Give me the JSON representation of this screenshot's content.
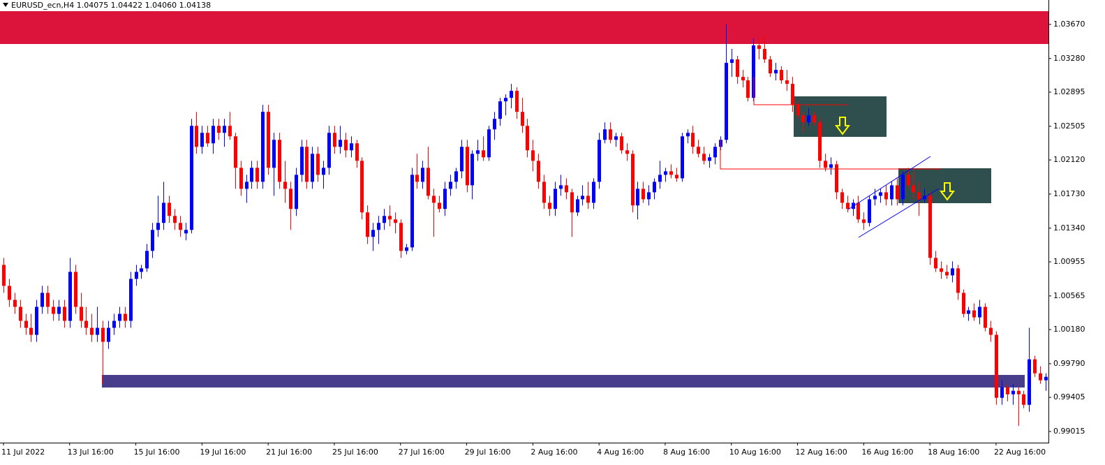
{
  "chart_data": {
    "type": "candlestick",
    "title": "EURUSD_ecn,H4  1.04075 1.04422 1.04060 1.04138",
    "bull_color": "#0000ff",
    "bear_color": "#ff0000",
    "xlim": [
      -0.63,
      189.5
    ],
    "ylim": [
      0.98887,
      1.03949
    ],
    "xticks": [
      {
        "value": 0,
        "label": "11 Jul 2022"
      },
      {
        "value": 12,
        "label": "13 Jul 16:00"
      },
      {
        "value": 24,
        "label": "15 Jul 16:00"
      },
      {
        "value": 36,
        "label": "19 Jul 16:00"
      },
      {
        "value": 48,
        "label": "21 Jul 16:00"
      },
      {
        "value": 60,
        "label": "25 Jul 16:00"
      },
      {
        "value": 72,
        "label": "27 Jul 16:00"
      },
      {
        "value": 84,
        "label": "29 Jul 16:00"
      },
      {
        "value": 96,
        "label": "2 Aug 16:00"
      },
      {
        "value": 108,
        "label": "4 Aug 16:00"
      },
      {
        "value": 120,
        "label": "8 Aug 16:00"
      },
      {
        "value": 132,
        "label": "10 Aug 16:00"
      },
      {
        "value": 144,
        "label": "12 Aug 16:00"
      },
      {
        "value": 156,
        "label": "16 Aug 16:00"
      },
      {
        "value": 168,
        "label": "18 Aug 16:00"
      },
      {
        "value": 180,
        "label": "22 Aug 16:00"
      }
    ],
    "yticks": [
      {
        "value": 1.0367,
        "label": "1.03670"
      },
      {
        "value": 1.0328,
        "label": "1.03280"
      },
      1.02895,
      1.02505,
      {
        "value": 1.0212,
        "label": "1.02120"
      },
      {
        "value": 1.0173,
        "label": "1.01730"
      },
      {
        "value": 1.0134,
        "label": "1.01340"
      },
      1.00955,
      1.00565,
      {
        "value": 1.0018,
        "label": "1.00180"
      },
      {
        "value": 0.9979,
        "label": "0.99790"
      },
      0.99405,
      0.99015
    ],
    "candles": [
      [
        1.0092,
        1.01,
        1.006,
        1.0068
      ],
      [
        1.0068,
        1.0076,
        1.0044,
        1.0052
      ],
      [
        1.0052,
        1.006,
        1.0036,
        1.0044
      ],
      [
        1.0044,
        1.0052,
        1.002,
        1.0028
      ],
      [
        1.0028,
        1.0036,
        1.0012,
        1.002
      ],
      [
        1.002,
        1.0036,
        1.0004,
        1.0012
      ],
      [
        1.0012,
        1.0052,
        1.0004,
        1.0044
      ],
      [
        1.0044,
        1.0068,
        1.0036,
        1.006
      ],
      [
        1.006,
        1.0068,
        1.0036,
        1.0044
      ],
      [
        1.0044,
        1.0052,
        1.0028,
        1.0036
      ],
      [
        1.0036,
        1.0052,
        1.0028,
        1.0044
      ],
      [
        1.0044,
        1.0052,
        1.002,
        1.0028
      ],
      [
        1.0028,
        1.01,
        1.002,
        1.0084
      ],
      [
        1.0084,
        1.0092,
        1.0036,
        1.0044
      ],
      [
        1.0044,
        1.006,
        1.002,
        1.0028
      ],
      [
        1.0028,
        1.0044,
        1.0012,
        1.002
      ],
      [
        1.002,
        1.0036,
        1.0004,
        1.0012
      ],
      [
        1.0012,
        1.0044,
        1.0004,
        1.002
      ],
      [
        1.002,
        1.0028,
        0.9956,
        1.0004
      ],
      [
        1.0004,
        1.0028,
        0.9996,
        1.002
      ],
      [
        1.002,
        1.0036,
        1.0012,
        1.0028
      ],
      [
        1.0028,
        1.0044,
        1.002,
        1.0036
      ],
      [
        1.0036,
        1.0044,
        1.002,
        1.0028
      ],
      [
        1.0028,
        1.0084,
        1.002,
        1.0076
      ],
      [
        1.0076,
        1.0092,
        1.0068,
        1.0084
      ],
      [
        1.0084,
        1.0092,
        1.0076,
        1.0088
      ],
      [
        1.0088,
        1.0116,
        1.0084,
        1.0108
      ],
      [
        1.0108,
        1.014,
        1.01,
        1.0132
      ],
      [
        1.0132,
        1.0171,
        1.0124,
        1.014
      ],
      [
        1.014,
        1.0187,
        1.0132,
        1.0163
      ],
      [
        1.0163,
        1.0171,
        1.014,
        1.0148
      ],
      [
        1.0148,
        1.0156,
        1.0132,
        1.014
      ],
      [
        1.014,
        1.0148,
        1.0124,
        1.0132
      ],
      [
        1.0128,
        1.014,
        1.012,
        1.0132
      ],
      [
        1.0132,
        1.0259,
        1.0128,
        1.0251
      ],
      [
        1.0251,
        1.0267,
        1.0219,
        1.0227
      ],
      [
        1.0227,
        1.0251,
        1.0219,
        1.0243
      ],
      [
        1.0243,
        1.0251,
        1.0227,
        1.0231
      ],
      [
        1.0231,
        1.0259,
        1.0219,
        1.0251
      ],
      [
        1.0251,
        1.0259,
        1.0235,
        1.0243
      ],
      [
        1.0243,
        1.0259,
        1.0227,
        1.0251
      ],
      [
        1.0251,
        1.0267,
        1.0235,
        1.0239
      ],
      [
        1.0239,
        1.0243,
        1.0179,
        1.0203
      ],
      [
        1.0203,
        1.0211,
        1.0171,
        1.0179
      ],
      [
        1.0179,
        1.0195,
        1.0163,
        1.0187
      ],
      [
        1.0187,
        1.0211,
        1.0179,
        1.0203
      ],
      [
        1.0203,
        1.0211,
        1.0179,
        1.0187
      ],
      [
        1.0187,
        1.0275,
        1.0179,
        1.0267
      ],
      [
        1.0267,
        1.0275,
        1.0195,
        1.0203
      ],
      [
        1.0203,
        1.0243,
        1.0171,
        1.0235
      ],
      [
        1.0235,
        1.0243,
        1.0179,
        1.0187
      ],
      [
        1.0187,
        1.0211,
        1.0163,
        1.0179
      ],
      [
        1.0179,
        1.0187,
        1.0132,
        1.0156
      ],
      [
        1.0156,
        1.0203,
        1.0148,
        1.0195
      ],
      [
        1.0195,
        1.0235,
        1.0187,
        1.0227
      ],
      [
        1.0227,
        1.0235,
        1.0179,
        1.0187
      ],
      [
        1.0187,
        1.0227,
        1.0179,
        1.0219
      ],
      [
        1.0219,
        1.0227,
        1.0187,
        1.0195
      ],
      [
        1.0195,
        1.0211,
        1.0179,
        1.0203
      ],
      [
        1.0203,
        1.0251,
        1.0195,
        1.0243
      ],
      [
        1.0243,
        1.0251,
        1.0219,
        1.0227
      ],
      [
        1.0227,
        1.0251,
        1.0219,
        1.0235
      ],
      [
        1.0235,
        1.0243,
        1.0215,
        1.0223
      ],
      [
        1.0223,
        1.0239,
        1.0215,
        1.0231
      ],
      [
        1.0231,
        1.0235,
        1.0203,
        1.0211
      ],
      [
        1.0211,
        1.0215,
        1.0144,
        1.0152
      ],
      [
        1.0152,
        1.016,
        1.0116,
        1.0124
      ],
      [
        1.0124,
        1.014,
        1.0108,
        1.0132
      ],
      [
        1.0132,
        1.0148,
        1.0116,
        1.014
      ],
      [
        1.014,
        1.0156,
        1.0132,
        1.0148
      ],
      [
        1.0148,
        1.016,
        1.0136,
        1.0144
      ],
      [
        1.0144,
        1.0152,
        1.0128,
        1.014
      ],
      [
        1.014,
        1.0144,
        1.01,
        1.0108
      ],
      [
        1.0108,
        1.0116,
        1.0104,
        1.0112
      ],
      [
        1.0112,
        1.0203,
        1.0108,
        1.0195
      ],
      [
        1.0195,
        1.0219,
        1.0179,
        1.0187
      ],
      [
        1.0187,
        1.0211,
        1.0179,
        1.0203
      ],
      [
        1.0203,
        1.0227,
        1.0167,
        1.0171
      ],
      [
        1.0171,
        1.0179,
        1.0124,
        1.0163
      ],
      [
        1.0163,
        1.0171,
        1.0152,
        1.0156
      ],
      [
        1.0156,
        1.0187,
        1.0148,
        1.0179
      ],
      [
        1.0179,
        1.0195,
        1.0171,
        1.0187
      ],
      [
        1.0187,
        1.0203,
        1.0179,
        1.0199
      ],
      [
        1.0199,
        1.0235,
        1.0191,
        1.0227
      ],
      [
        1.0227,
        1.0235,
        1.0175,
        1.0183
      ],
      [
        1.0183,
        1.0223,
        1.0167,
        1.0219
      ],
      [
        1.0219,
        1.0235,
        1.0211,
        1.0223
      ],
      [
        1.0223,
        1.0239,
        1.0211,
        1.0215
      ],
      [
        1.0215,
        1.0251,
        1.0211,
        1.0247
      ],
      [
        1.0247,
        1.0267,
        1.0235,
        1.0259
      ],
      [
        1.0259,
        1.0283,
        1.0251,
        1.0279
      ],
      [
        1.0279,
        1.0287,
        1.0263,
        1.0283
      ],
      [
        1.0283,
        1.0299,
        1.0271,
        1.0291
      ],
      [
        1.0291,
        1.0295,
        1.0259,
        1.0267
      ],
      [
        1.0267,
        1.0283,
        1.0243,
        1.0251
      ],
      [
        1.0251,
        1.0259,
        1.0215,
        1.0223
      ],
      [
        1.0223,
        1.0235,
        1.0199,
        1.0211
      ],
      [
        1.0211,
        1.0219,
        1.0179,
        1.0187
      ],
      [
        1.0187,
        1.0195,
        1.0156,
        1.0163
      ],
      [
        1.0163,
        1.0171,
        1.0148,
        1.0156
      ],
      [
        1.0156,
        1.0187,
        1.0148,
        1.0179
      ],
      [
        1.0179,
        1.0195,
        1.0171,
        1.0183
      ],
      [
        1.0183,
        1.0191,
        1.0167,
        1.0175
      ],
      [
        1.0175,
        1.0179,
        1.0124,
        1.0152
      ],
      [
        1.0152,
        1.0171,
        1.0148,
        1.0167
      ],
      [
        1.0167,
        1.0183,
        1.016,
        1.0171
      ],
      [
        1.0171,
        1.0187,
        1.0156,
        1.0163
      ],
      [
        1.0163,
        1.0191,
        1.0156,
        1.0187
      ],
      [
        1.0187,
        1.0243,
        1.0179,
        1.0235
      ],
      [
        1.0235,
        1.0255,
        1.0231,
        1.0247
      ],
      [
        1.0247,
        1.0255,
        1.0231,
        1.0235
      ],
      [
        1.0235,
        1.0243,
        1.0227,
        1.0239
      ],
      [
        1.0239,
        1.0243,
        1.0219,
        1.0223
      ],
      [
        1.0223,
        1.0231,
        1.0211,
        1.0219
      ],
      [
        1.0219,
        1.0223,
        1.0152,
        1.016
      ],
      [
        1.016,
        1.0187,
        1.0144,
        1.0179
      ],
      [
        1.0179,
        1.0187,
        1.0163,
        1.0167
      ],
      [
        1.0167,
        1.0183,
        1.016,
        1.0175
      ],
      [
        1.0175,
        1.0191,
        1.0167,
        1.0187
      ],
      [
        1.0187,
        1.0211,
        1.0179,
        1.0195
      ],
      [
        1.0195,
        1.0203,
        1.0187,
        1.0199
      ],
      [
        1.0199,
        1.0207,
        1.0191,
        1.0195
      ],
      [
        1.0195,
        1.0203,
        1.0187,
        1.0191
      ],
      [
        1.0191,
        1.0243,
        1.0187,
        1.0239
      ],
      [
        1.0239,
        1.0247,
        1.0231,
        1.0243
      ],
      [
        1.0243,
        1.0251,
        1.0219,
        1.0227
      ],
      [
        1.0227,
        1.0235,
        1.0215,
        1.0219
      ],
      [
        1.0219,
        1.0227,
        1.0207,
        1.0211
      ],
      [
        1.0211,
        1.0219,
        1.0203,
        1.0215
      ],
      [
        1.0215,
        1.0231,
        1.0207,
        1.0227
      ],
      [
        1.0227,
        1.0239,
        1.0223,
        1.0235
      ],
      [
        1.0235,
        1.0367,
        1.0231,
        1.0323
      ],
      [
        1.0323,
        1.0339,
        1.0307,
        1.0327
      ],
      [
        1.0327,
        1.0331,
        1.0299,
        1.0307
      ],
      [
        1.0307,
        1.0315,
        1.0295,
        1.0303
      ],
      [
        1.0303,
        1.0307,
        1.0279,
        1.0283
      ],
      [
        1.0283,
        1.0351,
        1.0279,
        1.0343
      ],
      [
        1.0343,
        1.0351,
        1.0327,
        1.0339
      ],
      [
        1.0339,
        1.0355,
        1.0323,
        1.0327
      ],
      [
        1.0327,
        1.0331,
        1.0307,
        1.0311
      ],
      [
        1.0311,
        1.0323,
        1.0303,
        1.0315
      ],
      [
        1.0315,
        1.0319,
        1.0299,
        1.0303
      ],
      [
        1.0303,
        1.0315,
        1.0291,
        1.0299
      ],
      [
        1.0299,
        1.0307,
        1.0267,
        1.0275
      ],
      [
        1.0275,
        1.0279,
        1.0259,
        1.0263
      ],
      [
        1.0263,
        1.0267,
        1.0243,
        1.0255
      ],
      [
        1.0255,
        1.0271,
        1.0251,
        1.0263
      ],
      [
        1.0263,
        1.0267,
        1.0251,
        1.0255
      ],
      [
        1.0255,
        1.0259,
        1.0203,
        1.0211
      ],
      [
        1.0211,
        1.0219,
        1.0199,
        1.0203
      ],
      [
        1.0203,
        1.0215,
        1.0195,
        1.0207
      ],
      [
        1.0207,
        1.0211,
        1.0167,
        1.0175
      ],
      [
        1.0175,
        1.0179,
        1.0156,
        1.0163
      ],
      [
        1.0163,
        1.0171,
        1.0152,
        1.0156
      ],
      [
        1.0156,
        1.0167,
        1.0148,
        1.0163
      ],
      [
        1.0163,
        1.0171,
        1.014,
        1.0144
      ],
      [
        1.0144,
        1.0152,
        1.0132,
        1.014
      ],
      [
        1.014,
        1.0171,
        1.0136,
        1.0167
      ],
      [
        1.0167,
        1.0179,
        1.016,
        1.0171
      ],
      [
        1.0171,
        1.0179,
        1.0163,
        1.0175
      ],
      [
        1.0175,
        1.0183,
        1.016,
        1.0167
      ],
      [
        1.0167,
        1.0187,
        1.016,
        1.0183
      ],
      [
        1.0183,
        1.0191,
        1.016,
        1.0167
      ],
      [
        1.0167,
        1.0199,
        1.016,
        1.0195
      ],
      [
        1.0195,
        1.0203,
        1.0179,
        1.0183
      ],
      [
        1.0183,
        1.0199,
        1.0167,
        1.0175
      ],
      [
        1.0175,
        1.0187,
        1.0148,
        1.0167
      ],
      [
        1.0167,
        1.0179,
        1.0163,
        1.0171
      ],
      [
        1.0171,
        1.0175,
        1.0092,
        1.01
      ],
      [
        1.01,
        1.0108,
        1.0084,
        1.0088
      ],
      [
        1.0088,
        1.0096,
        1.0076,
        1.0084
      ],
      [
        1.0084,
        1.0092,
        1.0076,
        1.008
      ],
      [
        1.008,
        1.0096,
        1.0072,
        1.0088
      ],
      [
        1.0088,
        1.0092,
        1.0052,
        1.006
      ],
      [
        1.006,
        1.0064,
        1.0032,
        1.0036
      ],
      [
        1.0036,
        1.0044,
        1.0028,
        1.004
      ],
      [
        1.004,
        1.0048,
        1.0028,
        1.0032
      ],
      [
        1.0032,
        1.0052,
        1.0024,
        1.0044
      ],
      [
        1.0044,
        1.0048,
        1.0016,
        1.002
      ],
      [
        1.002,
        1.0028,
        1.0004,
        1.0012
      ],
      [
        1.0012,
        1.0016,
        0.9932,
        0.994
      ],
      [
        0.994,
        0.996,
        0.9932,
        0.9952
      ],
      [
        0.9952,
        0.9956,
        0.9936,
        0.9944
      ],
      [
        0.9944,
        0.9956,
        0.9932,
        0.9948
      ],
      [
        0.9948,
        0.9952,
        0.9908,
        0.9944
      ],
      [
        0.9944,
        0.9948,
        0.9928,
        0.9932
      ],
      [
        0.9932,
        1.002,
        0.9924,
        0.9984
      ],
      [
        0.9984,
        0.9988,
        0.9964,
        0.9968
      ],
      [
        0.9968,
        0.9976,
        0.9956,
        0.996
      ],
      [
        0.996,
        0.9968,
        0.9948,
        0.9964
      ]
    ]
  }
}
